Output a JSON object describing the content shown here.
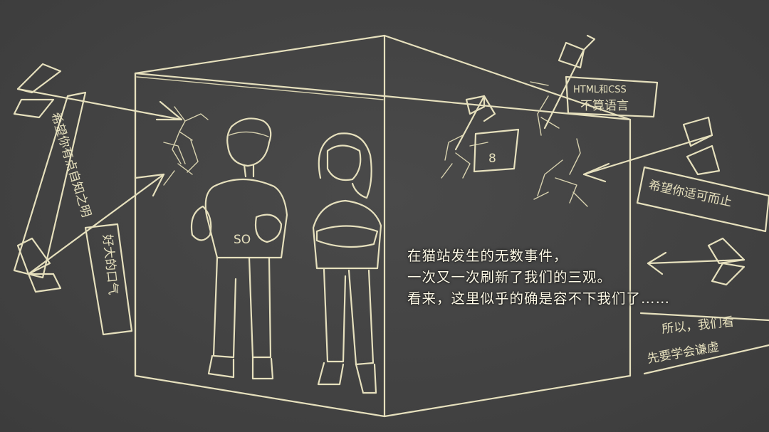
{
  "narration": {
    "lines": [
      "在猫站发生的无数事件，",
      "一次又一次刷新了我们的三观。",
      "看来，这里似乎的确是容不下我们了……"
    ]
  },
  "illustration": {
    "shirt_letters": "SO",
    "dice_number": "8",
    "banners": {
      "top_left": "希望你有点自知之明",
      "mid_left": "好大的口气",
      "top_right_line1": "HTML和CSS",
      "top_right_line2": "不算语言",
      "mid_right": "希望你适可而止",
      "bottom_right_line1": "所以，我们看",
      "bottom_right_line2": "先要学会谦虚"
    }
  },
  "colors": {
    "background": "#444444",
    "chalk": "#e6e0bd",
    "narration_text": "#fffbe8"
  }
}
